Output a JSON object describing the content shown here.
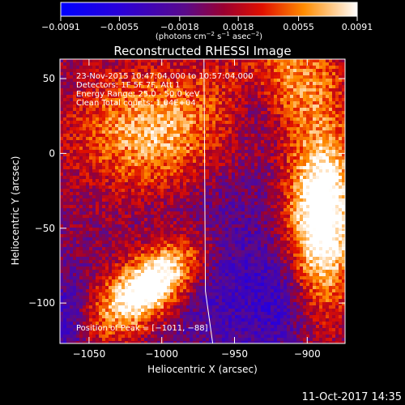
{
  "chart_data": {
    "type": "heatmap",
    "title": "Reconstructed RHESSI Image",
    "xlabel": "Heliocentric X (arcsec)",
    "ylabel": "Heliocentric Y (arcsec)",
    "xlim": [
      -1070,
      -874
    ],
    "ylim": [
      -127,
      63
    ],
    "x_ticks": [
      -1050,
      -1000,
      -950,
      -900
    ],
    "x_tick_labels": [
      "−1050",
      "−1000",
      "−950",
      "−900"
    ],
    "y_ticks": [
      -100,
      -50,
      0,
      50
    ],
    "y_tick_labels": [
      "−100",
      "−50",
      "0",
      "50"
    ],
    "colorbar": {
      "min": -0.0091,
      "max": 0.0091,
      "ticks": [
        -0.0091,
        -0.0055,
        -0.0018,
        0.0018,
        0.0055,
        0.0091
      ],
      "tick_labels": [
        "−0.0091",
        "−0.0055",
        "−0.0018",
        "0.0018",
        "0.0055",
        "0.0091"
      ],
      "unit_parts": [
        "(photons cm",
        "−2",
        " s",
        "−1",
        " asec",
        "−2",
        ")"
      ]
    },
    "annotations": [
      "23-Nov-2015 10:47:04.000 to 10:57:04.000",
      "Detectors: 1F 5F 7F, Att 1",
      "Energy Range: 25.0 - 50.0 keV",
      "Clean    Total counts: 1.04E+04"
    ],
    "position_label": "Position of Peak = [−1011, −88]",
    "peak": [
      -1011,
      -88
    ],
    "sources": [
      {
        "x": -1008,
        "y": -88,
        "value": 0.0091
      },
      {
        "x": -890,
        "y": -40,
        "value": 0.0085
      },
      {
        "x": -1005,
        "y": 15,
        "value": 0.0062
      },
      {
        "x": -918,
        "y": 50,
        "value": 0.0048
      }
    ],
    "limb_line": [
      [
        -971,
        63
      ],
      [
        -970,
        -92
      ],
      [
        -965,
        -127
      ]
    ]
  },
  "footer": {
    "timestamp": "11-Oct-2017 14:35"
  }
}
